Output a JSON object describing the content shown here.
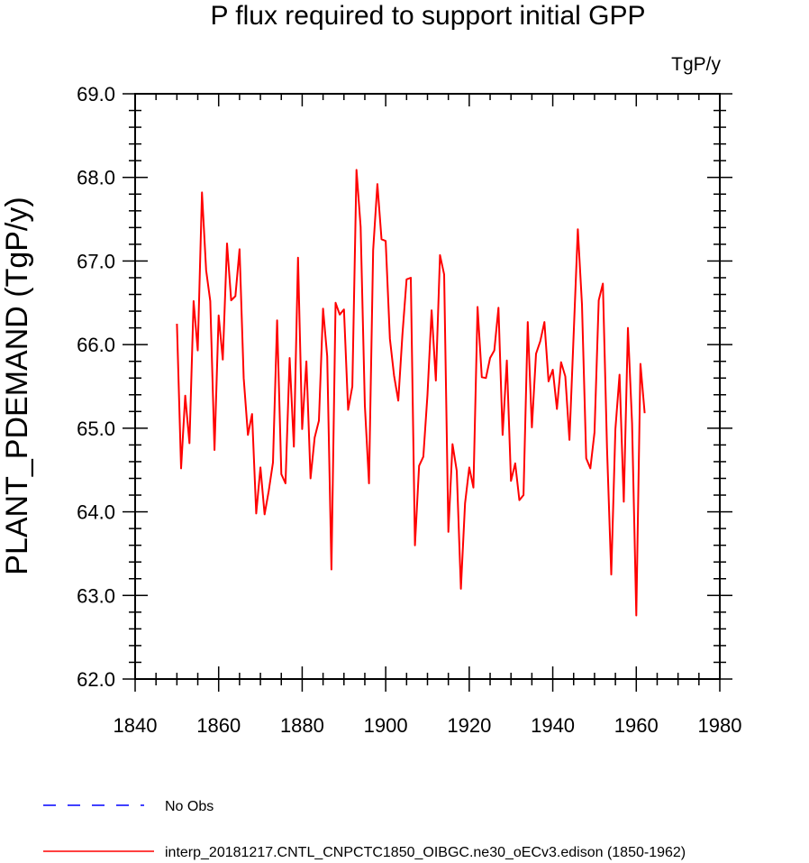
{
  "chart_data": {
    "type": "line",
    "title": "P flux required to support initial GPP",
    "units_label": "TgP/y",
    "ylabel": "PLANT_PDEMAND  (TgP/y)",
    "xlabel": "",
    "xlim": [
      1840,
      1980
    ],
    "ylim": [
      62.0,
      69.0
    ],
    "x_ticks": [
      "1840",
      "1860",
      "1880",
      "1900",
      "1920",
      "1940",
      "1960",
      "1980"
    ],
    "y_ticks": [
      "62.0",
      "63.0",
      "64.0",
      "65.0",
      "66.0",
      "67.0",
      "68.0",
      "69.0"
    ],
    "series": [
      {
        "name": "interp_20181217.CNTL_CNPCTC1850_OIBGC.ne30_oECv3.edison (1850-1962)",
        "color": "#ff0000",
        "style": "solid",
        "x": [
          1850,
          1851,
          1852,
          1853,
          1854,
          1855,
          1856,
          1857,
          1858,
          1859,
          1860,
          1861,
          1862,
          1863,
          1864,
          1865,
          1866,
          1867,
          1868,
          1869,
          1870,
          1871,
          1872,
          1873,
          1874,
          1875,
          1876,
          1877,
          1878,
          1879,
          1880,
          1881,
          1882,
          1883,
          1884,
          1885,
          1886,
          1887,
          1888,
          1889,
          1890,
          1891,
          1892,
          1893,
          1894,
          1895,
          1896,
          1897,
          1898,
          1899,
          1900,
          1901,
          1902,
          1903,
          1904,
          1905,
          1906,
          1907,
          1908,
          1909,
          1910,
          1911,
          1912,
          1913,
          1914,
          1915,
          1916,
          1917,
          1918,
          1919,
          1920,
          1921,
          1922,
          1923,
          1924,
          1925,
          1926,
          1927,
          1928,
          1929,
          1930,
          1931,
          1932,
          1933,
          1934,
          1935,
          1936,
          1937,
          1938,
          1939,
          1940,
          1941,
          1942,
          1943,
          1944,
          1945,
          1946,
          1947,
          1948,
          1949,
          1950,
          1951,
          1952,
          1953,
          1954,
          1955,
          1956,
          1957,
          1958,
          1959,
          1960,
          1961,
          1962
        ],
        "values": [
          66.25,
          64.52,
          65.39,
          64.82,
          66.52,
          65.93,
          67.82,
          66.89,
          66.52,
          64.74,
          66.35,
          65.82,
          67.21,
          66.53,
          66.58,
          67.14,
          65.6,
          64.92,
          65.17,
          63.98,
          64.53,
          63.97,
          64.25,
          64.59,
          66.29,
          64.45,
          64.34,
          65.84,
          64.78,
          67.04,
          64.99,
          65.8,
          64.4,
          64.89,
          65.09,
          66.43,
          65.86,
          63.31,
          66.5,
          66.36,
          66.42,
          65.22,
          65.5,
          68.09,
          67.41,
          65.27,
          64.34,
          67.13,
          67.92,
          67.26,
          67.24,
          66.07,
          65.63,
          65.33,
          66.12,
          66.78,
          66.8,
          63.6,
          64.55,
          64.66,
          65.4,
          66.41,
          65.57,
          67.07,
          66.84,
          63.76,
          64.81,
          64.49,
          63.08,
          64.1,
          64.53,
          64.29,
          66.45,
          65.61,
          65.6,
          65.84,
          65.93,
          66.44,
          64.92,
          65.81,
          64.37,
          64.58,
          64.14,
          64.2,
          66.27,
          65.01,
          65.89,
          66.04,
          66.27,
          65.56,
          65.7,
          65.23,
          65.79,
          65.62,
          64.86,
          66.13,
          67.38,
          66.48,
          64.64,
          64.52,
          64.95,
          66.53,
          66.73,
          64.76,
          63.25,
          64.99,
          65.64,
          64.12,
          66.2,
          65.06,
          62.76,
          65.77,
          65.18
        ]
      }
    ],
    "legend": [
      {
        "label": "No Obs",
        "color": "#0000ff",
        "style": "dashed"
      },
      {
        "label": "interp_20181217.CNTL_CNPCTC1850_OIBGC.ne30_oECv3.edison (1850-1962)",
        "color": "#ff0000",
        "style": "solid"
      }
    ],
    "legend_position": "bottom-left"
  }
}
